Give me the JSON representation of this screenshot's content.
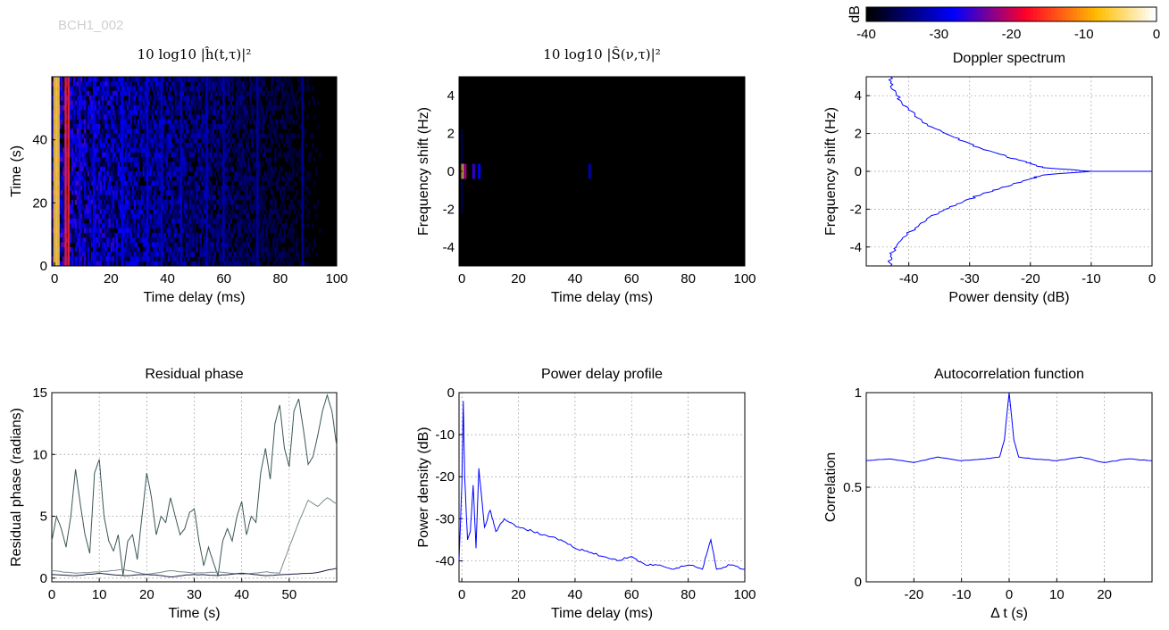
{
  "watermark": "BCH1_002",
  "chart_data": [
    {
      "id": "delay-time",
      "type": "heatmap",
      "title": "10 log10 |ĥ(t,τ)|²",
      "xlabel": "Time delay (ms)",
      "ylabel": "Time (s)",
      "xlim": [
        -1,
        100
      ],
      "ylim": [
        0,
        60
      ],
      "xticks": [
        0,
        20,
        40,
        60,
        80,
        100
      ],
      "yticks": [
        0,
        20,
        40
      ],
      "colorbar": "hot",
      "clim": [
        -40,
        0
      ],
      "strong_delay_lines_ms": [
        0,
        1,
        4,
        5,
        9,
        14,
        24,
        33,
        38,
        45,
        54,
        60,
        72,
        88
      ]
    },
    {
      "id": "doppler-delay",
      "type": "heatmap",
      "title": "10 log10 |Ŝ(ν,τ)|²",
      "xlabel": "Time delay (ms)",
      "ylabel": "Frequency shift (Hz)",
      "xlim": [
        -1,
        100
      ],
      "ylim": [
        -5,
        5
      ],
      "xticks": [
        0,
        20,
        40,
        60,
        80,
        100
      ],
      "yticks": [
        -4,
        -2,
        0,
        2,
        4
      ],
      "clim": [
        -40,
        0
      ]
    },
    {
      "id": "doppler-spectrum",
      "type": "line",
      "title": "Doppler spectrum",
      "xlabel": "Power density (dB)",
      "ylabel": "Frequency shift (Hz)",
      "xlim": [
        -47,
        0
      ],
      "ylim": [
        -5,
        5
      ],
      "xticks": [
        -40,
        -30,
        -20,
        -10,
        0
      ],
      "yticks": [
        -4,
        -2,
        0,
        2,
        4
      ],
      "grid": true,
      "series": [
        {
          "color": "#0000ff",
          "x": [
            -43,
            -43,
            -42,
            -41,
            -39,
            -37,
            -34,
            -31,
            -28,
            -25,
            -22,
            -20,
            -18,
            -10,
            -18,
            -20,
            -22,
            -25,
            -28,
            -31,
            -34,
            -37,
            -39,
            -41,
            -42,
            -43,
            -43
          ],
          "y": [
            5,
            4.5,
            4,
            3.5,
            3,
            2.5,
            2,
            1.6,
            1.2,
            0.9,
            0.6,
            0.4,
            0.2,
            0,
            -0.2,
            -0.4,
            -0.6,
            -0.9,
            -1.2,
            -1.6,
            -2,
            -2.5,
            -3,
            -3.5,
            -4,
            -4.5,
            -5
          ]
        }
      ]
    },
    {
      "id": "residual-phase",
      "type": "line",
      "title": "Residual phase",
      "xlabel": "Time (s)",
      "ylabel": "Residual phase (radians)",
      "xlim": [
        0,
        60
      ],
      "ylim": [
        -0.3,
        15
      ],
      "xticks": [
        0,
        10,
        20,
        30,
        40,
        50
      ],
      "yticks": [
        0,
        5,
        10,
        15
      ],
      "grid": true,
      "series": [
        {
          "color": "#3c5656",
          "x": [
            0,
            1,
            2,
            3,
            4,
            5,
            6,
            7,
            8,
            9,
            10,
            11,
            12,
            13,
            14,
            15,
            16,
            17,
            18,
            19,
            20,
            21,
            22,
            23,
            24,
            25,
            26,
            27,
            28,
            29,
            30,
            31,
            32,
            33,
            34,
            35,
            36,
            37,
            38,
            39,
            40,
            41,
            42,
            43,
            44,
            45,
            46,
            47,
            48,
            49,
            50,
            51,
            52,
            53,
            54,
            55,
            56,
            57,
            58,
            59,
            60
          ],
          "y": [
            3,
            5,
            4,
            2.5,
            5,
            8.8,
            6,
            3.5,
            2,
            8.5,
            9.6,
            5,
            3,
            2.2,
            3.5,
            0.2,
            3,
            3.5,
            1.5,
            5,
            8.5,
            6.5,
            3.5,
            5,
            4.5,
            6.5,
            5,
            3.5,
            4,
            5.3,
            5.6,
            3,
            1,
            2.5,
            1.3,
            0.2,
            3,
            4,
            3,
            5,
            6.2,
            3.5,
            5,
            4.5,
            8.5,
            10.5,
            8,
            12.5,
            14,
            10.5,
            9,
            13.5,
            14.5,
            12,
            9.2,
            9.8,
            11.5,
            13.5,
            14.8,
            13.5,
            10.7
          ]
        },
        {
          "color": "#7a8c8c",
          "x": [
            0,
            5,
            10,
            15,
            20,
            25,
            30,
            35,
            40,
            45,
            48,
            50,
            52,
            54,
            56,
            58,
            60
          ],
          "y": [
            0.6,
            0.4,
            0.5,
            0.7,
            0.3,
            0.6,
            0.4,
            0.5,
            0.3,
            0.5,
            0.4,
            2.5,
            4.5,
            6.3,
            5.8,
            6.5,
            6
          ]
        },
        {
          "color": "#1a1a40",
          "x": [
            0,
            5,
            10,
            15,
            20,
            25,
            30,
            35,
            40,
            45,
            50,
            55,
            60
          ],
          "y": [
            0.3,
            0.2,
            0.4,
            0.2,
            0.3,
            0.1,
            0.3,
            0.2,
            0.4,
            0.2,
            0.3,
            0.4,
            0.8
          ]
        }
      ]
    },
    {
      "id": "power-delay-profile",
      "type": "line",
      "title": "Power delay profile",
      "xlabel": "Time delay (ms)",
      "ylabel": "Power density (dB)",
      "xlim": [
        -1,
        100
      ],
      "ylim": [
        -45,
        0
      ],
      "xticks": [
        0,
        20,
        40,
        60,
        80,
        100
      ],
      "yticks": [
        0,
        -10,
        -20,
        -30,
        -40
      ],
      "grid": true,
      "series": [
        {
          "color": "#0000ff",
          "x": [
            -1,
            0,
            0.5,
            1,
            2,
            3,
            4,
            5,
            6,
            8,
            10,
            12,
            15,
            20,
            25,
            30,
            35,
            40,
            45,
            50,
            55,
            60,
            65,
            70,
            75,
            80,
            85,
            88,
            90,
            95,
            100
          ],
          "y": [
            -40,
            -22,
            -2,
            -20,
            -35,
            -33,
            -22,
            -37,
            -18,
            -32,
            -28,
            -33,
            -30,
            -32,
            -33,
            -34,
            -35,
            -37,
            -38,
            -39,
            -40,
            -39,
            -41,
            -41,
            -42,
            -41,
            -42,
            -35,
            -42,
            -41,
            -42
          ]
        }
      ]
    },
    {
      "id": "autocorrelation",
      "type": "line",
      "title": "Autocorrelation function",
      "xlabel": "Δ t (s)",
      "ylabel": "Correlation",
      "xlim": [
        -30,
        30
      ],
      "ylim": [
        0,
        1
      ],
      "xticks": [
        -20,
        -10,
        0,
        10,
        20
      ],
      "yticks": [
        0,
        0.5,
        1
      ],
      "grid": true,
      "series": [
        {
          "color": "#0000ff",
          "x": [
            -30,
            -25,
            -20,
            -15,
            -10,
            -5,
            -2,
            -1,
            0,
            1,
            2,
            5,
            10,
            15,
            20,
            25,
            30
          ],
          "y": [
            0.64,
            0.65,
            0.63,
            0.66,
            0.64,
            0.65,
            0.66,
            0.75,
            1,
            0.75,
            0.66,
            0.65,
            0.64,
            0.66,
            0.63,
            0.65,
            0.64
          ]
        }
      ]
    },
    {
      "id": "colorbar",
      "type": "heatmap",
      "label": "dB",
      "xlim": [
        -40,
        0
      ],
      "xticks": [
        -40,
        -30,
        -20,
        -10,
        0
      ],
      "colormap": "hot"
    }
  ]
}
